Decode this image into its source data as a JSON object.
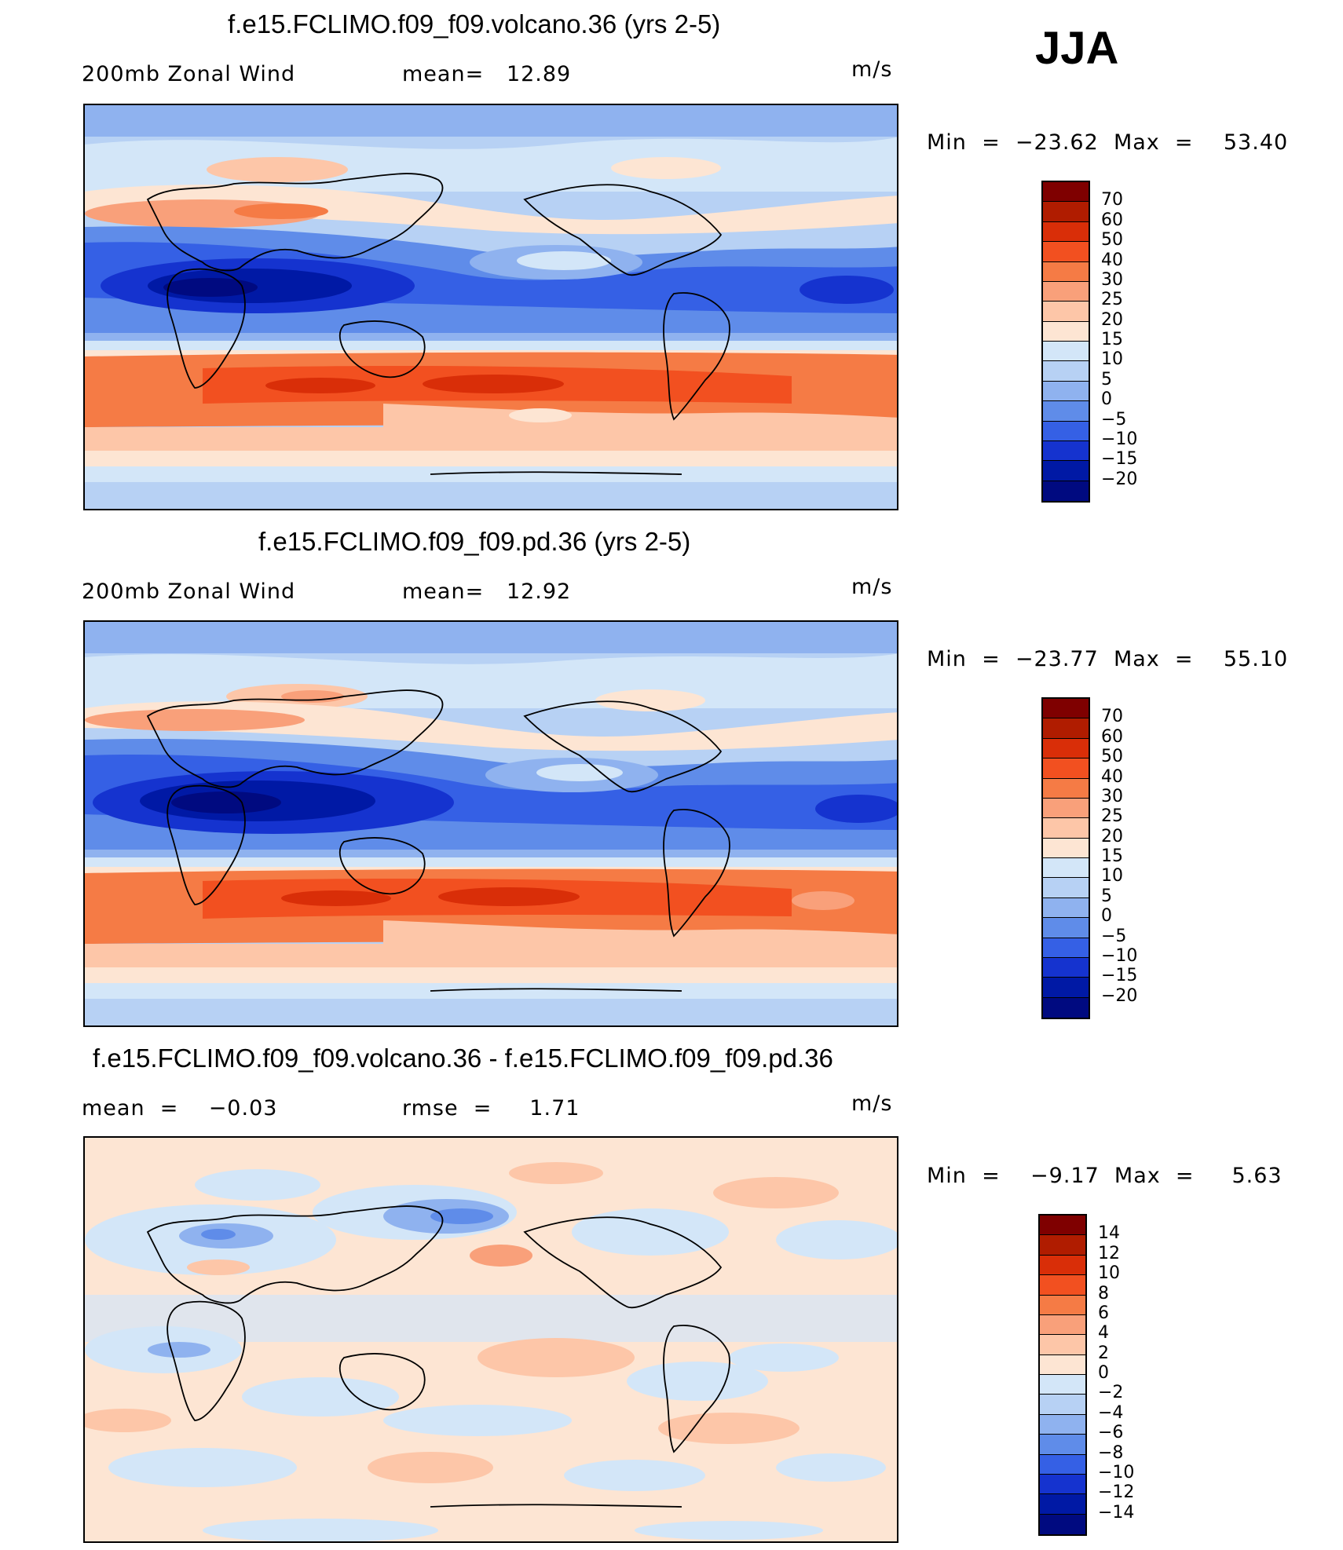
{
  "season": "JJA",
  "panels": [
    {
      "title": "f.e15.FCLIMO.f09_f09.volcano.36 (yrs 2-5)",
      "left_label": "200mb Zonal Wind",
      "stat_label": "mean=   12.89",
      "units": "m/s",
      "minmax": "Min  =  −23.62  Max  =    53.40",
      "colorbar": "main"
    },
    {
      "title": "f.e15.FCLIMO.f09_f09.pd.36 (yrs 2-5)",
      "left_label": "200mb Zonal Wind",
      "stat_label": "mean=   12.92",
      "units": "m/s",
      "minmax": "Min  =  −23.77  Max  =    55.10",
      "colorbar": "main"
    },
    {
      "title": "f.e15.FCLIMO.f09_f09.volcano.36 - f.e15.FCLIMO.f09_f09.pd.36",
      "left_label": "mean  =    −0.03",
      "stat_label": "rmse  =     1.71",
      "units": "m/s",
      "minmax": "Min  =    −9.17  Max  =     5.63",
      "colorbar": "diff"
    }
  ],
  "colorbars": {
    "main": {
      "ticks": [
        "70",
        "60",
        "50",
        "40",
        "30",
        "25",
        "20",
        "15",
        "10",
        "5",
        "0",
        "−5",
        "−10",
        "−15",
        "−20"
      ],
      "colors": [
        "#7f0000",
        "#b01c00",
        "#d92e08",
        "#f25020",
        "#f57b45",
        "#f9a07a",
        "#fdc6a8",
        "#fde5d3",
        "#d3e6f8",
        "#b7d1f4",
        "#8fb2ef",
        "#5f8ce9",
        "#3560e5",
        "#1533cf",
        "#0019a5",
        "#000a80"
      ]
    },
    "diff": {
      "ticks": [
        "14",
        "12",
        "10",
        "8",
        "6",
        "4",
        "2",
        "0",
        "−2",
        "−4",
        "−6",
        "−8",
        "−10",
        "−12",
        "−14"
      ],
      "colors": [
        "#7f0000",
        "#b01c00",
        "#d92e08",
        "#f25020",
        "#f57b45",
        "#f9a07a",
        "#fdc6a8",
        "#fde5d3",
        "#d3e6f8",
        "#b7d1f4",
        "#8fb2ef",
        "#5f8ce9",
        "#3560e5",
        "#1533cf",
        "#0019a5",
        "#000a80"
      ]
    }
  }
}
